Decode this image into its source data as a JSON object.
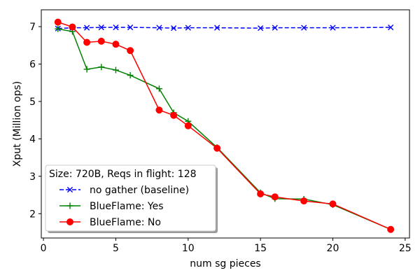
{
  "chart_data": {
    "type": "line",
    "xlabel": "num sg pieces",
    "ylabel": "Xput (Million ops)",
    "xlim": [
      -0.15,
      25.3
    ],
    "ylim": [
      1.35,
      7.45
    ],
    "xticks": [
      0,
      5,
      10,
      15,
      20,
      25
    ],
    "yticks": [
      2,
      3,
      4,
      5,
      6,
      7
    ],
    "grid": false,
    "legend": {
      "placement": "lower-left",
      "title": "Size: 720B, Reqs in flight: 128"
    },
    "series": [
      {
        "name": "no gather (baseline)",
        "color": "#0000ff",
        "line_style": "dashed",
        "marker": "x",
        "x": [
          1,
          2,
          3,
          4,
          5,
          6,
          8,
          9,
          10,
          12,
          15,
          16,
          18,
          20,
          24
        ],
        "y": [
          6.95,
          6.97,
          6.97,
          6.98,
          6.98,
          6.98,
          6.97,
          6.96,
          6.97,
          6.97,
          6.96,
          6.97,
          6.97,
          6.97,
          6.98
        ]
      },
      {
        "name": "BlueFlame: Yes",
        "color": "#008000",
        "line_style": "solid",
        "marker": "+",
        "x": [
          1,
          2,
          3,
          4,
          5,
          6,
          8,
          9,
          10,
          12,
          15,
          16,
          18,
          20,
          24
        ],
        "y": [
          6.94,
          6.87,
          5.86,
          5.92,
          5.84,
          5.7,
          5.34,
          4.7,
          4.47,
          3.77,
          2.56,
          2.4,
          2.39,
          2.24,
          1.58
        ]
      },
      {
        "name": "BlueFlame: No",
        "color": "#ff0000",
        "line_style": "solid",
        "marker": "o",
        "x": [
          1,
          2,
          3,
          4,
          5,
          6,
          8,
          9,
          10,
          12,
          15,
          16,
          18,
          20,
          24
        ],
        "y": [
          7.12,
          6.99,
          6.58,
          6.61,
          6.53,
          6.36,
          4.77,
          4.63,
          4.35,
          3.75,
          2.53,
          2.45,
          2.34,
          2.26,
          1.58
        ]
      }
    ]
  }
}
